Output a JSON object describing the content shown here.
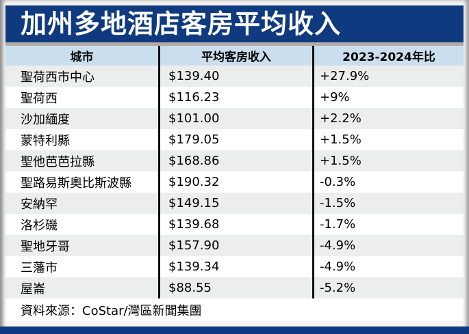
{
  "title": "加州多地酒店客房平均收入",
  "table": {
    "headers": [
      "城市",
      "平均客房收入",
      "2023-2024年比"
    ],
    "rows": [
      {
        "city": "聖荷西市中心",
        "revenue": "$139.40",
        "change": "+27.9%"
      },
      {
        "city": "聖荷西",
        "revenue": "$116.23",
        "change": "+9%"
      },
      {
        "city": "沙加緬度",
        "revenue": "$101.00",
        "change": "+2.2%"
      },
      {
        "city": "蒙特利縣",
        "revenue": "$179.05",
        "change": "+1.5%"
      },
      {
        "city": "聖他芭芭拉縣",
        "revenue": "$168.86",
        "change": "+1.5%"
      },
      {
        "city": "聖路易斯奧比斯波縣",
        "revenue": "$190.32",
        "change": "-0.3%"
      },
      {
        "city": "安納罕",
        "revenue": "$149.15",
        "change": "-1.5%"
      },
      {
        "city": "洛杉磯",
        "revenue": "$139.68",
        "change": "-1.7%"
      },
      {
        "city": "聖地牙哥",
        "revenue": "$157.90",
        "change": "-4.9%"
      },
      {
        "city": "三藩市",
        "revenue": "$139.34",
        "change": "-4.9%"
      },
      {
        "city": "屋崙",
        "revenue": "$88.55",
        "change": "-5.2%"
      }
    ]
  },
  "footer": {
    "source": "資料來源：CoStar/灣區新聞集團"
  },
  "colors": {
    "brand_navy": "#0f3a80",
    "header_blue": "#cbdeed",
    "stripe_gray": "#ebeeec",
    "divider_black": "#111111",
    "title_text": "#ffffff"
  },
  "chart_data": {
    "type": "table",
    "title": "加州多地酒店客房平均收入",
    "columns": [
      "城市",
      "平均客房收入",
      "2023-2024年比"
    ],
    "rows": [
      {
        "city": "聖荷西市中心",
        "avg_room_revenue_usd": 139.4,
        "yoy_change_pct": 27.9
      },
      {
        "city": "聖荷西",
        "avg_room_revenue_usd": 116.23,
        "yoy_change_pct": 9
      },
      {
        "city": "沙加緬度",
        "avg_room_revenue_usd": 101.0,
        "yoy_change_pct": 2.2
      },
      {
        "city": "蒙特利縣",
        "avg_room_revenue_usd": 179.05,
        "yoy_change_pct": 1.5
      },
      {
        "city": "聖他芭芭拉縣",
        "avg_room_revenue_usd": 168.86,
        "yoy_change_pct": 1.5
      },
      {
        "city": "聖路易斯奧比斯波縣",
        "avg_room_revenue_usd": 190.32,
        "yoy_change_pct": -0.3
      },
      {
        "city": "安納罕",
        "avg_room_revenue_usd": 149.15,
        "yoy_change_pct": -1.5
      },
      {
        "city": "洛杉磯",
        "avg_room_revenue_usd": 139.68,
        "yoy_change_pct": -1.7
      },
      {
        "city": "聖地牙哥",
        "avg_room_revenue_usd": 157.9,
        "yoy_change_pct": -4.9
      },
      {
        "city": "三藩市",
        "avg_room_revenue_usd": 139.34,
        "yoy_change_pct": -4.9
      },
      {
        "city": "屋崙",
        "avg_room_revenue_usd": 88.55,
        "yoy_change_pct": -5.2
      }
    ],
    "source": "資料來源：CoStar/灣區新聞集團"
  }
}
